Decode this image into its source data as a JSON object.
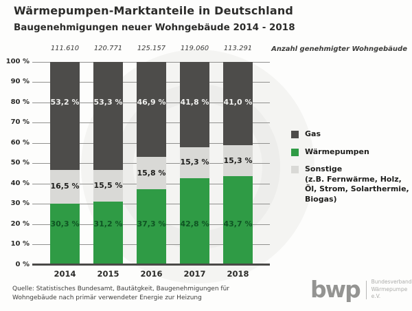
{
  "header": {
    "title": "Wärmepumpen-Marktanteile in Deutschland",
    "subtitle": "Baugenehmigungen neuer Wohngebäude 2014 - 2018"
  },
  "chart_data": {
    "type": "bar",
    "stacked": true,
    "title": "Wärmepumpen-Marktanteile in Deutschland",
    "subtitle": "Baugenehmigungen neuer Wohngebäude 2014 - 2018",
    "categories": [
      "2014",
      "2015",
      "2016",
      "2017",
      "2018"
    ],
    "totals_label": "Anzahl genehmigter Wohngebäude",
    "totals": [
      "111.610",
      "120.771",
      "125.157",
      "119.060",
      "113.291"
    ],
    "ylim": [
      0,
      100
    ],
    "ytick_step": 10,
    "yticks": [
      "100 %",
      "90 %",
      "80 %",
      "70 %",
      "60 %",
      "50 %",
      "40 %",
      "30 %",
      "20 %",
      "10 %",
      "0 %"
    ],
    "grid": true,
    "legend_position": "right",
    "series": [
      {
        "name": "Wärmepumpen",
        "color": "#2f9b45",
        "label_color": "#0f5423",
        "label_anchor": 20,
        "values": [
          30.3,
          31.2,
          37.3,
          42.8,
          43.7
        ],
        "labels": [
          "30,3 %",
          "31,2 %",
          "37,3 %",
          "42,8 %",
          "43,7 %"
        ]
      },
      {
        "name": "Sonstige",
        "color": "#d9d9d6",
        "label_color": "#1d1d1b",
        "label_anchor": "center",
        "values": [
          16.5,
          15.5,
          15.8,
          15.3,
          15.3
        ],
        "labels": [
          "16,5 %",
          "15,5 %",
          "15,8 %",
          "15,3 %",
          "15,3 %"
        ]
      },
      {
        "name": "Gas",
        "color": "#4d4c4a",
        "label_color": "#f1f1ef",
        "label_anchor": 80,
        "values": [
          53.2,
          53.3,
          46.9,
          41.8,
          41.0
        ],
        "labels": [
          "53,2 %",
          "53,3 %",
          "46,9 %",
          "41,8 %",
          "41,0 %"
        ]
      }
    ]
  },
  "legend": {
    "items": [
      {
        "label": "Gas",
        "color": "#4d4c4a"
      },
      {
        "label": "Wärmepumpen",
        "color": "#2f9b45"
      },
      {
        "label": "Sonstige",
        "color": "#d9d9d6",
        "note": [
          "(z.B. Fernwärme, Holz,",
          "Öl, Strom, Solarthermie,",
          "Biogas)"
        ]
      }
    ]
  },
  "footer": {
    "source_line1": "Quelle: Statistisches Bundesamt, Bautätgkeit, Baugenehmigungen für",
    "source_line2": "Wohngebäude nach primär verwendeter Energie zur Heizung",
    "logo": {
      "mark": "bwp",
      "org_line1": "Bundesverband",
      "org_line2": "Wärmepumpe e.V."
    }
  }
}
